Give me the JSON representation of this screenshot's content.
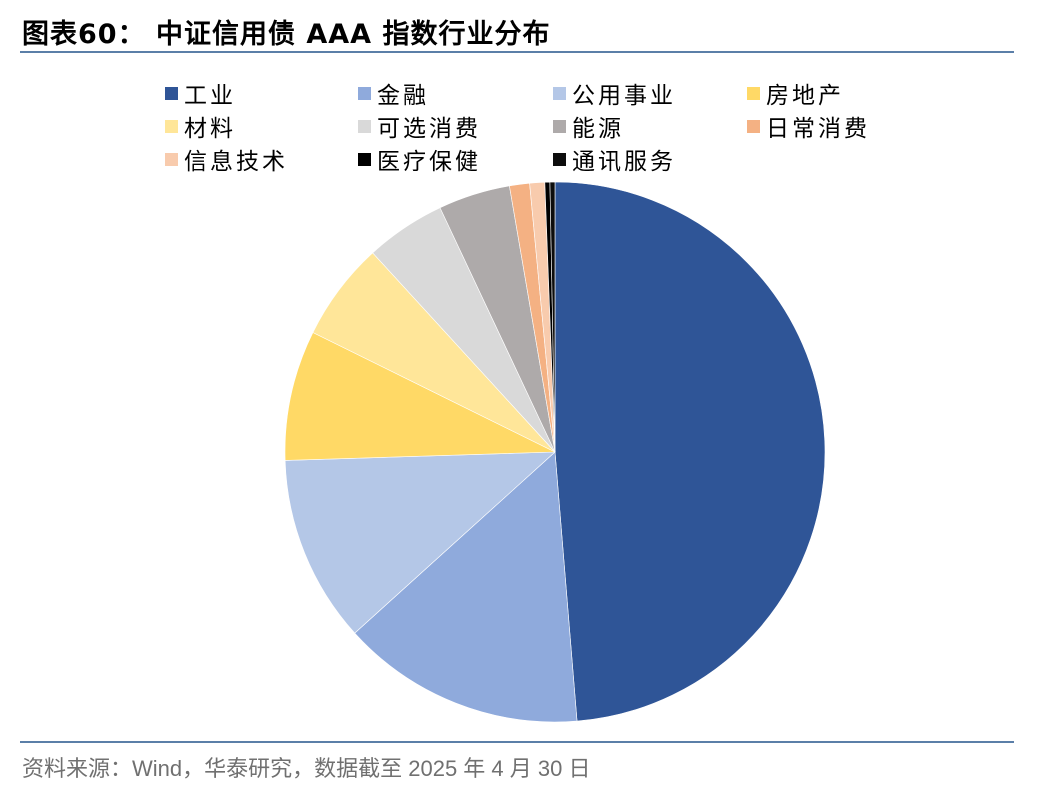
{
  "header": {
    "title": "图表60：  中证信用债 AAA 指数行业分布"
  },
  "footer": {
    "source": "资料来源：Wind，华泰研究，数据截至 2025 年 4 月 30 日"
  },
  "chart_data": {
    "type": "pie",
    "title": "中证信用债 AAA 指数行业分布",
    "categories": [
      "工业",
      "金融",
      "公用事业",
      "房地产",
      "材料",
      "可选消费",
      "能源",
      "日常消费",
      "信息技术",
      "医疗保健",
      "通讯服务"
    ],
    "values": [
      48.7,
      14.6,
      11.2,
      7.8,
      5.9,
      4.8,
      4.3,
      1.2,
      0.9,
      0.3,
      0.3
    ],
    "unit": "%",
    "colors": [
      "#2f5597",
      "#8faadc",
      "#b4c7e7",
      "#ffd966",
      "#ffe699",
      "#d9d9d9",
      "#aeaaaa",
      "#f4b183",
      "#f8cbad",
      "#000000",
      "#0d0d0d"
    ],
    "start_angle_deg": 0,
    "direction": "clockwise",
    "legend_position": "top",
    "data_labels": false,
    "note": "Values estimated from slice angles; no data labels shown"
  },
  "legend": {
    "items": [
      {
        "label": "工业",
        "color": "#2f5597"
      },
      {
        "label": "金融",
        "color": "#8faadc"
      },
      {
        "label": "公用事业",
        "color": "#b4c7e7"
      },
      {
        "label": "房地产",
        "color": "#ffd966"
      },
      {
        "label": "材料",
        "color": "#ffe699"
      },
      {
        "label": "可选消费",
        "color": "#d9d9d9"
      },
      {
        "label": "能源",
        "color": "#aeaaaa"
      },
      {
        "label": "日常消费",
        "color": "#f4b183"
      },
      {
        "label": "信息技术",
        "color": "#f8cbad"
      },
      {
        "label": "医疗保健",
        "color": "#000000"
      },
      {
        "label": "通讯服务",
        "color": "#0d0d0d"
      }
    ]
  }
}
